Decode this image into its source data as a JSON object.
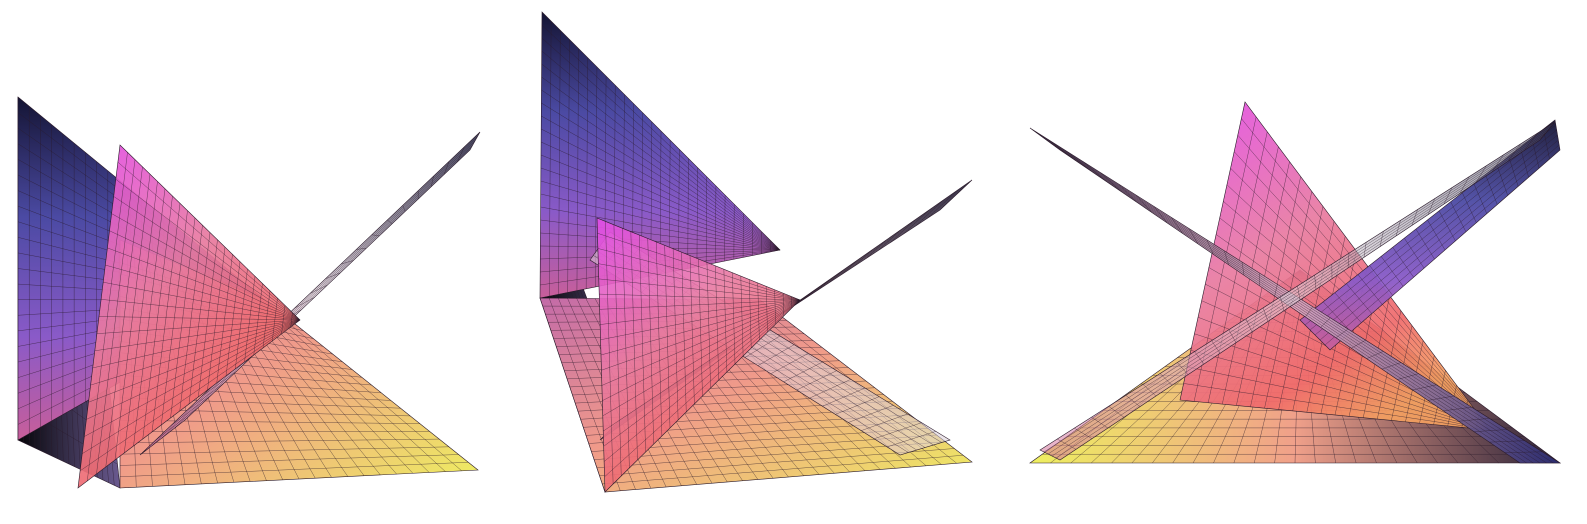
{
  "figure": {
    "panel_count": 3,
    "background": "#ffffff",
    "mesh_line_color": "#2a1a2a",
    "palette": {
      "navy": "#2b2c73",
      "blue_violet": "#5b54b8",
      "violet": "#8a5ac8",
      "magenta": "#e24ce8",
      "pink": "#e87aa0",
      "salmon": "#f06a6a",
      "orange": "#f4a060",
      "yellow": "#eef060",
      "silver": "#d8d2d8",
      "black": "#0a0a12"
    },
    "panels": [
      {
        "name": "left-view",
        "surfaces": [
          "back-pyramid-face",
          "front-triangle-face",
          "blade-face",
          "floor-face"
        ]
      },
      {
        "name": "middle-view",
        "surfaces": [
          "back-pyramid-face",
          "front-triangle-face",
          "blade-face",
          "floor-face"
        ]
      },
      {
        "name": "right-view",
        "surfaces": [
          "back-pyramid-face",
          "front-triangle-face",
          "blade-face",
          "floor-face"
        ]
      }
    ]
  }
}
